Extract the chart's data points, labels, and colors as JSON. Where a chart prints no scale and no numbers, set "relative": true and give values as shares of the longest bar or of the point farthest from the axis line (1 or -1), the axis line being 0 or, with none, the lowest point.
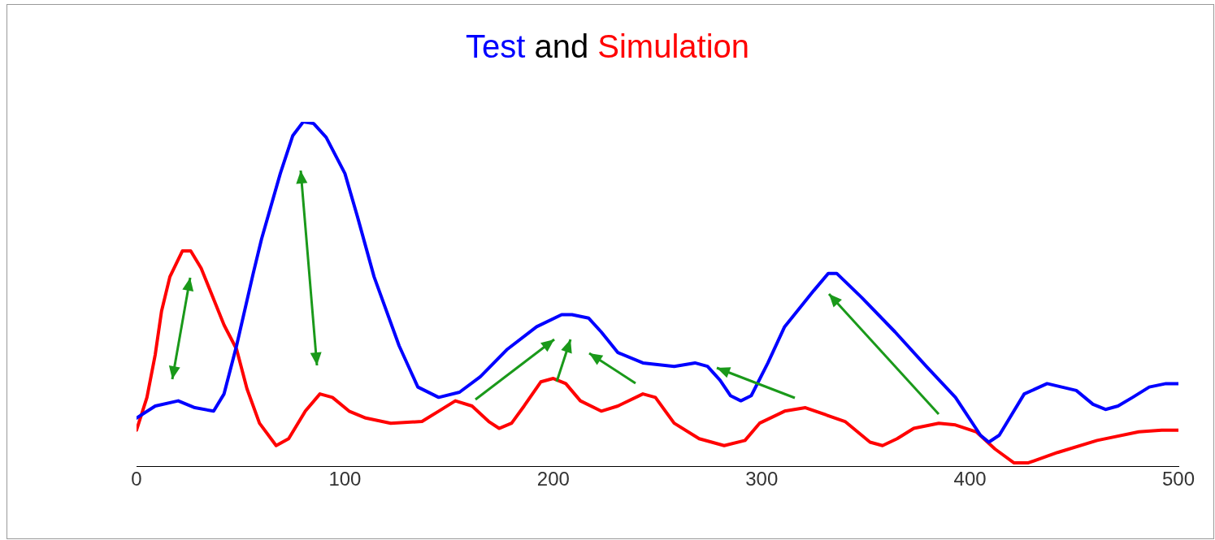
{
  "chart_data": {
    "type": "line",
    "title": "Test and Simulation",
    "relative": true,
    "xlim": [
      0,
      500
    ],
    "xticks": [
      0,
      100,
      200,
      300,
      400,
      500
    ],
    "grid": false,
    "legend": false,
    "marker": "none",
    "line_style": "solid",
    "series": [
      {
        "color": "#0000ff",
        "x": [
          0,
          9,
          20,
          28,
          37,
          42,
          48,
          56,
          60,
          69,
          75,
          80,
          85,
          91,
          100,
          106,
          114,
          126,
          135,
          145,
          155,
          165,
          178,
          192,
          204,
          209,
          217,
          223,
          231,
          243,
          258,
          268,
          274,
          280,
          285,
          290,
          295,
          303,
          311,
          325,
          332,
          336,
          348,
          364,
          379,
          393,
          405,
          409,
          414,
          426,
          437,
          451,
          459,
          465,
          471,
          478,
          486,
          494,
          500
        ],
        "values": [
          0.14,
          0.175,
          0.19,
          0.17,
          0.16,
          0.21,
          0.35,
          0.56,
          0.66,
          0.85,
          0.96,
          1,
          0.995,
          0.955,
          0.85,
          0.725,
          0.55,
          0.35,
          0.23,
          0.2,
          0.215,
          0.26,
          0.34,
          0.405,
          0.44,
          0.44,
          0.43,
          0.39,
          0.33,
          0.3,
          0.29,
          0.3,
          0.29,
          0.25,
          0.205,
          0.19,
          0.205,
          0.3,
          0.405,
          0.51,
          0.56,
          0.56,
          0.49,
          0.39,
          0.29,
          0.2,
          0.09,
          0.07,
          0.09,
          0.21,
          0.24,
          0.22,
          0.18,
          0.165,
          0.175,
          0.2,
          0.23,
          0.24,
          0.24
        ]
      },
      {
        "color": "#ff0000",
        "x": [
          0,
          5,
          9,
          12,
          16,
          22,
          26,
          31,
          36,
          42,
          48,
          53,
          59,
          67,
          73,
          81,
          88,
          94,
          102,
          110,
          122,
          137,
          145,
          153,
          161,
          169,
          174,
          180,
          186,
          194,
          200,
          206,
          213,
          223,
          231,
          243,
          249,
          258,
          270,
          282,
          292,
          299,
          311,
          321,
          340,
          352,
          358,
          365,
          373,
          385,
          393,
          403,
          412,
          421,
          428,
          442,
          461,
          481,
          492,
          500
        ],
        "values": [
          0.105,
          0.2,
          0.325,
          0.45,
          0.55,
          0.625,
          0.625,
          0.575,
          0.5,
          0.41,
          0.34,
          0.225,
          0.125,
          0.06,
          0.08,
          0.16,
          0.21,
          0.2,
          0.16,
          0.14,
          0.125,
          0.13,
          0.16,
          0.19,
          0.175,
          0.13,
          0.11,
          0.125,
          0.175,
          0.245,
          0.255,
          0.24,
          0.19,
          0.16,
          0.175,
          0.21,
          0.2,
          0.125,
          0.08,
          0.06,
          0.075,
          0.125,
          0.16,
          0.17,
          0.13,
          0.07,
          0.06,
          0.08,
          0.11,
          0.125,
          0.12,
          0.1,
          0.05,
          0.01,
          0.01,
          0.04,
          0.075,
          0.1,
          0.105,
          0.105
        ]
      }
    ]
  }
}
